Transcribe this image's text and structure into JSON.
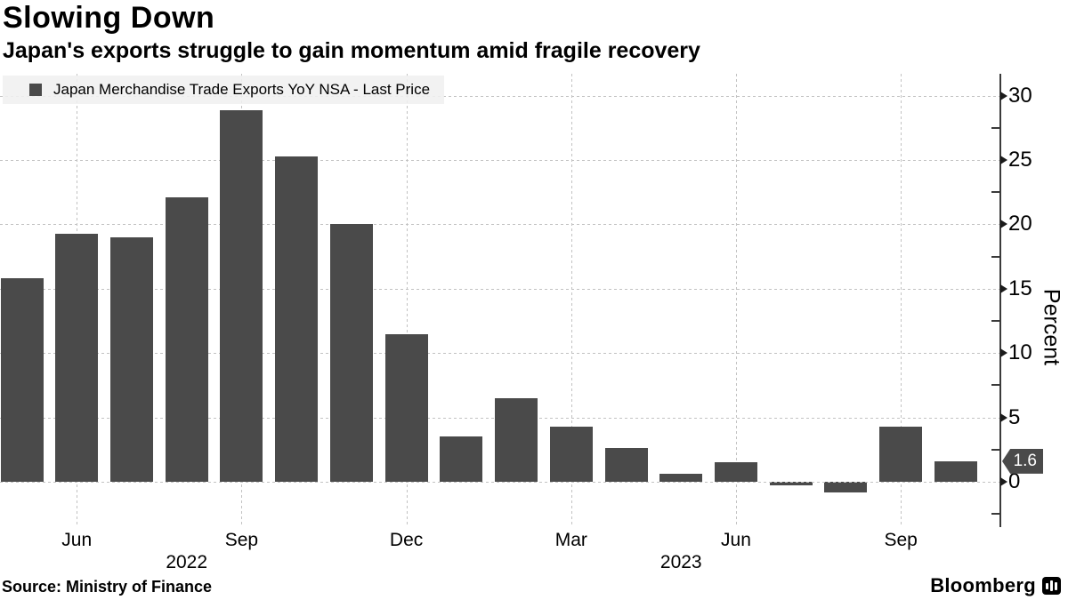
{
  "header": {
    "title": "Slowing Down",
    "subtitle": "Japan's exports struggle to gain momentum amid fragile recovery"
  },
  "legend": {
    "label": "Japan Merchandise Trade Exports YoY NSA - Last Price",
    "marker_color": "#4a4a4a"
  },
  "chart_data": {
    "type": "bar",
    "title": "Slowing Down",
    "series_name": "Japan Merchandise Trade Exports YoY NSA - Last Price",
    "x": [
      "May 2022",
      "Jun 2022",
      "Jul 2022",
      "Aug 2022",
      "Sep 2022",
      "Oct 2022",
      "Nov 2022",
      "Dec 2022",
      "Jan 2023",
      "Feb 2023",
      "Mar 2023",
      "Apr 2023",
      "May 2023",
      "Jun 2023",
      "Jul 2023",
      "Aug 2023",
      "Sep 2023",
      "Oct 2023"
    ],
    "values": [
      15.8,
      19.3,
      19.0,
      22.1,
      28.9,
      25.3,
      20.0,
      11.5,
      3.5,
      6.5,
      4.3,
      2.6,
      0.6,
      1.5,
      -0.3,
      -0.8,
      4.3,
      1.6
    ],
    "bar_color": "#4a4a4a",
    "ylabel": "Percent",
    "ylim": [
      -3.52,
      31.7
    ],
    "yticks": [
      0,
      5,
      10,
      15,
      20,
      25,
      30
    ],
    "minor_yticks": [
      -2.5,
      2.5,
      7.5,
      12.5,
      17.5,
      22.5,
      27.5
    ],
    "xticks": [
      {
        "index": 1,
        "label": "Jun"
      },
      {
        "index": 4,
        "label": "Sep"
      },
      {
        "index": 7,
        "label": "Dec"
      },
      {
        "index": 10,
        "label": "Mar"
      },
      {
        "index": 13,
        "label": "Jun"
      },
      {
        "index": 16,
        "label": "Sep"
      }
    ],
    "year_ticks": [
      {
        "index": 3,
        "label": "2022"
      },
      {
        "index": 12,
        "label": "2023"
      }
    ],
    "grid": true,
    "legend_position": "top-left",
    "last_price": {
      "value": "1.6",
      "color": "#4a4a4a",
      "text_color": "#ffffff"
    }
  },
  "footer": {
    "source": "Source: Ministry of Finance",
    "brand": "Bloomberg"
  },
  "icons": {
    "legend_marker": "filled-square",
    "brand_logo": "bloomberg-terminal-icon",
    "y_major_tick": "right-arrow"
  }
}
